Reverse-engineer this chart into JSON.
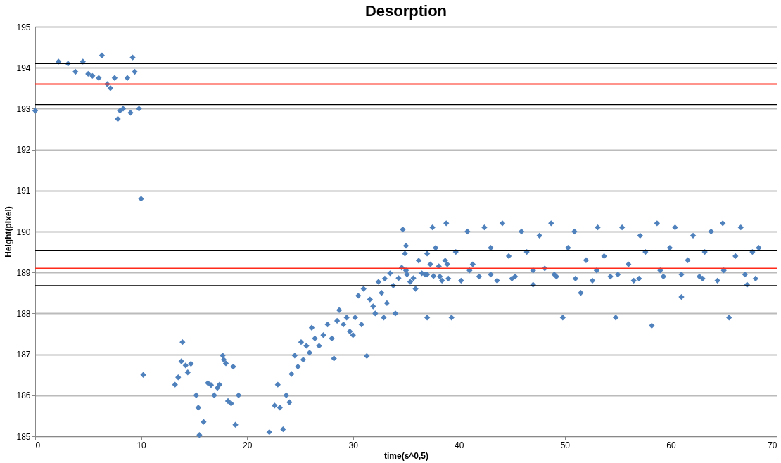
{
  "chart_data": {
    "type": "scatter",
    "title": "Desorption",
    "xlabel": "time(s^0,5)",
    "ylabel": "Height(pixel)",
    "xlim": [
      0,
      70
    ],
    "xticks": [
      0,
      10,
      20,
      30,
      40,
      50,
      60,
      70
    ],
    "ylim": [
      185,
      195
    ],
    "yticks": [
      185,
      186,
      187,
      188,
      189,
      190,
      191,
      192,
      193,
      194,
      195
    ],
    "grid": "y",
    "marker": "diamond",
    "ref_lines": [
      {
        "axis": "y",
        "value": 194.1,
        "color": "#000000"
      },
      {
        "axis": "y",
        "value": 193.6,
        "color": "#ff2a1a"
      },
      {
        "axis": "y",
        "value": 193.1,
        "color": "#000000"
      },
      {
        "axis": "y",
        "value": 189.53,
        "color": "#000000"
      },
      {
        "axis": "y",
        "value": 189.1,
        "color": "#ff2a1a"
      },
      {
        "axis": "y",
        "value": 188.68,
        "color": "#000000"
      }
    ],
    "series": [
      {
        "color": "#4f81bd",
        "x": [
          0,
          2.2,
          3.1,
          3.8,
          4.5,
          5.0,
          5.4,
          6.0,
          6.3,
          6.8,
          7.1,
          7.5,
          7.8,
          8.0,
          8.3,
          8.7,
          9.0,
          9.2,
          9.4,
          9.8,
          10.0,
          10.2
        ],
        "values": [
          192.95,
          194.15,
          194.1,
          193.9,
          194.15,
          193.85,
          193.8,
          193.75,
          194.3,
          193.6,
          193.5,
          193.75,
          192.75,
          192.95,
          193.0,
          193.75,
          192.9,
          194.25,
          193.9,
          193.0,
          190.8,
          186.5
        ]
      },
      {
        "color": "#4f81bd",
        "x": [
          13.2,
          13.5,
          13.8,
          13.9,
          14.2,
          14.4,
          14.7,
          15.2,
          15.4,
          15.5,
          15.9,
          16.3,
          16.6,
          16.9,
          17.2,
          17.4,
          17.7,
          17.8,
          18.0,
          18.2,
          18.5,
          18.7,
          18.9,
          19.2
        ],
        "values": [
          186.26,
          186.44,
          186.83,
          187.3,
          186.73,
          186.56,
          186.77,
          186.0,
          185.7,
          185.03,
          185.35,
          186.3,
          186.25,
          186.0,
          186.18,
          186.26,
          186.97,
          186.87,
          186.78,
          185.86,
          185.8,
          186.7,
          185.28,
          186.0
        ]
      },
      {
        "color": "#4f81bd",
        "x": [
          22.1,
          22.6,
          22.9,
          23.1,
          23.4,
          23.7,
          24.0,
          24.2,
          24.5,
          24.8,
          25.1,
          25.3,
          25.6,
          25.9,
          26.1,
          26.4,
          26.8,
          27.2,
          27.6,
          28.0,
          28.2,
          28.5,
          28.7,
          29.1,
          29.4,
          29.7,
          30.0,
          30.2,
          30.5,
          30.8,
          31.0,
          31.3,
          31.6,
          31.9,
          32.1,
          32.4,
          32.7,
          32.9,
          33.2,
          33.5,
          33.8,
          34.0,
          34.3,
          34.6,
          34.9,
          35.1,
          35.4,
          35.7,
          35.9,
          36.2,
          36.5,
          36.8,
          37.0,
          37.3,
          37.6,
          37.8,
          38.1,
          38.4,
          38.7,
          38.9
        ],
        "values": [
          185.1,
          185.75,
          186.26,
          185.7,
          185.17,
          186.0,
          185.83,
          186.52,
          186.97,
          186.7,
          187.3,
          186.87,
          187.21,
          187.04,
          187.65,
          187.39,
          187.21,
          187.47,
          187.73,
          187.39,
          186.9,
          187.82,
          188.08,
          187.73,
          187.9,
          187.56,
          187.47,
          187.9,
          188.43,
          187.73,
          188.6,
          186.96,
          188.34,
          188.17,
          188.0,
          188.77,
          188.5,
          187.9,
          188.25,
          188.98,
          188.68,
          188.0,
          188.86,
          189.12,
          189.46,
          188.95,
          188.77,
          188.86,
          188.6,
          189.29,
          188.98,
          188.95,
          189.46,
          189.2,
          188.91,
          189.6,
          189.15,
          188.8,
          189.29,
          189.2
        ]
      },
      {
        "color": "#4f81bd",
        "x": [
          34.7,
          35.0,
          37.0,
          37.5,
          38.2,
          38.8,
          39.3,
          39.7,
          40.2,
          40.8,
          41.3,
          41.9,
          42.4,
          43.0,
          43.6,
          44.1,
          44.7,
          45.3,
          45.9,
          46.4,
          47.0,
          47.6,
          48.1,
          48.7,
          49.2,
          49.8,
          50.3,
          50.9,
          51.5,
          52.0,
          52.6,
          53.1,
          53.7,
          54.3,
          54.8,
          55.4,
          56.0,
          56.5,
          57.1,
          57.6,
          58.2,
          58.7,
          59.3,
          59.9,
          60.4,
          61.0,
          61.6,
          62.1,
          62.7,
          63.2,
          63.8,
          64.4,
          64.9,
          65.5,
          66.1,
          66.6,
          67.2,
          67.7,
          68.3
        ],
        "values": [
          190.05,
          189.65,
          187.9,
          190.1,
          188.9,
          190.2,
          187.9,
          189.5,
          188.8,
          190.0,
          189.2,
          188.9,
          190.1,
          189.6,
          188.8,
          190.2,
          189.4,
          188.9,
          190.0,
          189.5,
          188.7,
          189.9,
          189.1,
          190.2,
          188.9,
          187.9,
          189.6,
          190.0,
          188.5,
          189.3,
          188.8,
          190.1,
          189.4,
          188.9,
          187.9,
          190.1,
          189.2,
          188.8,
          189.9,
          189.5,
          187.7,
          190.2,
          188.9,
          189.6,
          190.1,
          188.4,
          189.3,
          189.9,
          188.9,
          189.5,
          190.0,
          188.8,
          190.2,
          187.9,
          189.4,
          190.1,
          188.7,
          189.5,
          189.6
        ]
      },
      {
        "color": "#4f81bd",
        "x": [
          33,
          35,
          37,
          39,
          41,
          43,
          45,
          47,
          49,
          51,
          53,
          55,
          57,
          59,
          61,
          63,
          65,
          67,
          68
        ],
        "values": [
          188.85,
          189.05,
          188.95,
          188.85,
          189.05,
          188.95,
          188.85,
          189.05,
          188.95,
          188.85,
          189.05,
          188.95,
          188.85,
          189.05,
          188.95,
          188.85,
          189.05,
          188.95,
          188.85
        ]
      }
    ]
  }
}
